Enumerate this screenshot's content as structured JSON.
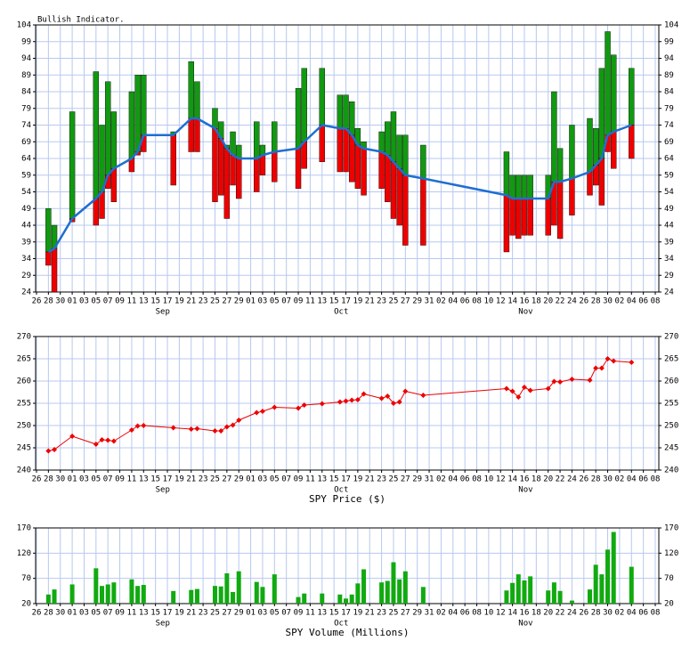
{
  "chart_data": [
    {
      "type": "range_bar",
      "title": "Bullish Indicator.",
      "x": [
        "Aug 28",
        "Aug 29",
        "Sep 1",
        "Sep 5",
        "Sep 6",
        "Sep 7",
        "Sep 8",
        "Sep 11",
        "Sep 12",
        "Sep 13",
        "Sep 18",
        "Sep 21",
        "Sep 22",
        "Sep 25",
        "Sep 26",
        "Sep 27",
        "Sep 28",
        "Sep 29",
        "Oct 2",
        "Oct 3",
        "Oct 5",
        "Oct 9",
        "Oct 10",
        "Oct 13",
        "Oct 16",
        "Oct 17",
        "Oct 18",
        "Oct 19",
        "Oct 20",
        "Oct 23",
        "Oct 24",
        "Oct 25",
        "Oct 26",
        "Oct 27",
        "Oct 30",
        "Nov 13",
        "Nov 14",
        "Nov 15",
        "Nov 16",
        "Nov 17",
        "Nov 20",
        "Nov 21",
        "Nov 22",
        "Nov 24",
        "Nov 27",
        "Nov 28",
        "Nov 29",
        "Nov 30",
        "Dec 1",
        "Dec 4"
      ],
      "high": [
        49,
        44,
        78,
        90,
        74,
        87,
        78,
        84,
        89,
        89,
        72,
        93,
        87,
        79,
        75,
        68,
        72,
        68,
        75,
        68,
        75,
        85,
        91,
        91,
        83,
        83,
        81,
        73,
        69,
        72,
        75,
        78,
        71,
        71,
        68,
        66,
        59,
        59,
        59,
        59,
        59,
        84,
        67,
        74,
        76,
        73,
        91,
        102,
        95,
        91
      ],
      "mid": [
        36,
        37,
        46,
        52,
        54,
        59,
        61,
        64,
        66,
        71,
        71,
        76,
        76,
        73,
        70,
        67,
        65,
        64,
        64,
        65,
        66,
        67,
        69,
        74,
        73,
        73,
        71,
        68,
        67,
        66,
        65,
        63,
        61,
        59,
        58,
        53,
        52,
        52,
        52,
        52,
        52,
        57,
        57,
        58,
        60,
        62,
        64,
        71,
        72,
        74
      ],
      "low": [
        32,
        24,
        45,
        44,
        46,
        55,
        51,
        60,
        65,
        66,
        56,
        66,
        66,
        51,
        53,
        46,
        56,
        52,
        54,
        59,
        57,
        55,
        61,
        63,
        60,
        60,
        57,
        55,
        53,
        55,
        51,
        46,
        44,
        38,
        38,
        36,
        41,
        40,
        41,
        41,
        41,
        44,
        40,
        47,
        53,
        56,
        50,
        66,
        61,
        64
      ],
      "up_color": "#119911",
      "down_color": "#ee0000",
      "line_color": "#1e6ed2",
      "xlim": [
        "Aug 26",
        "Dec 8"
      ],
      "xticks": [
        {
          "value": "Aug 26",
          "label": "26"
        },
        {
          "value": "Aug 28",
          "label": "28"
        },
        {
          "value": "Aug 30",
          "label": "30"
        },
        {
          "value": "Sep 1",
          "label": "01"
        },
        {
          "value": "Sep 3",
          "label": "03"
        },
        {
          "value": "Sep 5",
          "label": "05"
        },
        {
          "value": "Sep 7",
          "label": "07"
        },
        {
          "value": "Sep 9",
          "label": "09"
        },
        {
          "value": "Sep 11",
          "label": "11"
        },
        {
          "value": "Sep 13",
          "label": "13"
        },
        {
          "value": "Sep 15",
          "label": "15"
        },
        {
          "value": "Sep 17",
          "label": "17"
        },
        {
          "value": "Sep 19",
          "label": "19"
        },
        {
          "value": "Sep 21",
          "label": "21"
        },
        {
          "value": "Sep 23",
          "label": "23"
        },
        {
          "value": "Sep 25",
          "label": "25"
        },
        {
          "value": "Sep 27",
          "label": "27"
        },
        {
          "value": "Sep 29",
          "label": "29"
        },
        {
          "value": "Oct 1",
          "label": "01"
        },
        {
          "value": "Oct 3",
          "label": "03"
        },
        {
          "value": "Oct 5",
          "label": "05"
        },
        {
          "value": "Oct 7",
          "label": "07"
        },
        {
          "value": "Oct 9",
          "label": "09"
        },
        {
          "value": "Oct 11",
          "label": "11"
        },
        {
          "value": "Oct 13",
          "label": "13"
        },
        {
          "value": "Oct 15",
          "label": "15"
        },
        {
          "value": "Oct 17",
          "label": "17"
        },
        {
          "value": "Oct 19",
          "label": "19"
        },
        {
          "value": "Oct 21",
          "label": "21"
        },
        {
          "value": "Oct 23",
          "label": "23"
        },
        {
          "value": "Oct 25",
          "label": "25"
        },
        {
          "value": "Oct 27",
          "label": "27"
        },
        {
          "value": "Oct 29",
          "label": "29"
        },
        {
          "value": "Oct 31",
          "label": "31"
        },
        {
          "value": "Nov 2",
          "label": "02"
        },
        {
          "value": "Nov 4",
          "label": "04"
        },
        {
          "value": "Nov 6",
          "label": "06"
        },
        {
          "value": "Nov 8",
          "label": "08"
        },
        {
          "value": "Nov 10",
          "label": "10"
        },
        {
          "value": "Nov 12",
          "label": "12"
        },
        {
          "value": "Nov 14",
          "label": "14"
        },
        {
          "value": "Nov 16",
          "label": "16"
        },
        {
          "value": "Nov 18",
          "label": "18"
        },
        {
          "value": "Nov 20",
          "label": "20"
        },
        {
          "value": "Nov 22",
          "label": "22"
        },
        {
          "value": "Nov 24",
          "label": "24"
        },
        {
          "value": "Nov 26",
          "label": "26"
        },
        {
          "value": "Nov 28",
          "label": "28"
        },
        {
          "value": "Nov 30",
          "label": "30"
        },
        {
          "value": "Dec 2",
          "label": "02"
        },
        {
          "value": "Dec 4",
          "label": "04"
        },
        {
          "value": "Dec 6",
          "label": "06"
        },
        {
          "value": "Dec 8",
          "label": "08"
        }
      ],
      "month_ticks": [
        {
          "value": "Sep 15",
          "label": "Sep"
        },
        {
          "value": "Oct 15",
          "label": "Oct"
        },
        {
          "value": "Nov 15",
          "label": "Nov"
        }
      ],
      "ylim": [
        24,
        104
      ],
      "yticks": [
        24,
        29,
        34,
        39,
        44,
        49,
        54,
        59,
        64,
        69,
        74,
        79,
        84,
        89,
        94,
        99,
        104
      ],
      "grid": true,
      "mirror_y": true
    },
    {
      "type": "line",
      "xlabel": "SPY Price ($)",
      "x": [
        "Aug 28",
        "Aug 29",
        "Sep 1",
        "Sep 5",
        "Sep 6",
        "Sep 7",
        "Sep 8",
        "Sep 11",
        "Sep 12",
        "Sep 13",
        "Sep 18",
        "Sep 21",
        "Sep 22",
        "Sep 25",
        "Sep 26",
        "Sep 27",
        "Sep 28",
        "Sep 29",
        "Oct 2",
        "Oct 3",
        "Oct 5",
        "Oct 9",
        "Oct 10",
        "Oct 13",
        "Oct 16",
        "Oct 17",
        "Oct 18",
        "Oct 19",
        "Oct 20",
        "Oct 23",
        "Oct 24",
        "Oct 25",
        "Oct 26",
        "Oct 27",
        "Oct 30",
        "Nov 13",
        "Nov 14",
        "Nov 15",
        "Nov 16",
        "Nov 17",
        "Nov 20",
        "Nov 21",
        "Nov 22",
        "Nov 24",
        "Nov 27",
        "Nov 28",
        "Nov 29",
        "Nov 30",
        "Dec 1",
        "Dec 4"
      ],
      "values": [
        244.3,
        244.6,
        247.6,
        245.8,
        246.8,
        246.7,
        246.5,
        249,
        249.9,
        250,
        249.5,
        249.2,
        249.3,
        248.8,
        248.8,
        249.7,
        250.1,
        251.2,
        252.9,
        253.2,
        254.1,
        253.9,
        254.6,
        254.9,
        255.3,
        255.5,
        255.7,
        255.8,
        257.1,
        256.1,
        256.6,
        255,
        255.3,
        257.7,
        256.8,
        258.3,
        257.7,
        256.4,
        258.6,
        257.9,
        258.3,
        259.9,
        259.8,
        260.4,
        260.2,
        262.9,
        262.9,
        265,
        264.5,
        264.2
      ],
      "color": "#ee0000",
      "xlim": [
        "Aug 26",
        "Dec 8"
      ],
      "xticks": [
        {
          "value": "Aug 26",
          "label": "26"
        },
        {
          "value": "Aug 28",
          "label": "28"
        },
        {
          "value": "Aug 30",
          "label": "30"
        },
        {
          "value": "Sep 1",
          "label": "01"
        },
        {
          "value": "Sep 3",
          "label": "03"
        },
        {
          "value": "Sep 5",
          "label": "05"
        },
        {
          "value": "Sep 7",
          "label": "07"
        },
        {
          "value": "Sep 9",
          "label": "09"
        },
        {
          "value": "Sep 11",
          "label": "11"
        },
        {
          "value": "Sep 13",
          "label": "13"
        },
        {
          "value": "Sep 15",
          "label": "15"
        },
        {
          "value": "Sep 17",
          "label": "17"
        },
        {
          "value": "Sep 19",
          "label": "19"
        },
        {
          "value": "Sep 21",
          "label": "21"
        },
        {
          "value": "Sep 23",
          "label": "23"
        },
        {
          "value": "Sep 25",
          "label": "25"
        },
        {
          "value": "Sep 27",
          "label": "27"
        },
        {
          "value": "Sep 29",
          "label": "29"
        },
        {
          "value": "Oct 1",
          "label": "01"
        },
        {
          "value": "Oct 3",
          "label": "03"
        },
        {
          "value": "Oct 5",
          "label": "05"
        },
        {
          "value": "Oct 7",
          "label": "07"
        },
        {
          "value": "Oct 9",
          "label": "09"
        },
        {
          "value": "Oct 11",
          "label": "11"
        },
        {
          "value": "Oct 13",
          "label": "13"
        },
        {
          "value": "Oct 15",
          "label": "15"
        },
        {
          "value": "Oct 17",
          "label": "17"
        },
        {
          "value": "Oct 19",
          "label": "19"
        },
        {
          "value": "Oct 21",
          "label": "21"
        },
        {
          "value": "Oct 23",
          "label": "23"
        },
        {
          "value": "Oct 25",
          "label": "25"
        },
        {
          "value": "Oct 27",
          "label": "27"
        },
        {
          "value": "Oct 29",
          "label": "29"
        },
        {
          "value": "Oct 31",
          "label": "31"
        },
        {
          "value": "Nov 2",
          "label": "02"
        },
        {
          "value": "Nov 4",
          "label": "04"
        },
        {
          "value": "Nov 6",
          "label": "06"
        },
        {
          "value": "Nov 8",
          "label": "08"
        },
        {
          "value": "Nov 10",
          "label": "10"
        },
        {
          "value": "Nov 12",
          "label": "12"
        },
        {
          "value": "Nov 14",
          "label": "14"
        },
        {
          "value": "Nov 16",
          "label": "16"
        },
        {
          "value": "Nov 18",
          "label": "18"
        },
        {
          "value": "Nov 20",
          "label": "20"
        },
        {
          "value": "Nov 22",
          "label": "22"
        },
        {
          "value": "Nov 24",
          "label": "24"
        },
        {
          "value": "Nov 26",
          "label": "26"
        },
        {
          "value": "Nov 28",
          "label": "28"
        },
        {
          "value": "Nov 30",
          "label": "30"
        },
        {
          "value": "Dec 2",
          "label": "02"
        },
        {
          "value": "Dec 4",
          "label": "04"
        },
        {
          "value": "Dec 6",
          "label": "06"
        },
        {
          "value": "Dec 8",
          "label": "08"
        }
      ],
      "month_ticks": [
        {
          "value": "Sep 15",
          "label": "Sep"
        },
        {
          "value": "Oct 15",
          "label": "Oct"
        },
        {
          "value": "Nov 15",
          "label": "Nov"
        }
      ],
      "ylim": [
        240,
        270
      ],
      "yticks": [
        240,
        245,
        250,
        255,
        260,
        265,
        270
      ],
      "grid": true,
      "mirror_y": true
    },
    {
      "type": "bar",
      "xlabel": "SPY Volume (Millions)",
      "x": [
        "Aug 28",
        "Aug 29",
        "Sep 1",
        "Sep 5",
        "Sep 6",
        "Sep 7",
        "Sep 8",
        "Sep 11",
        "Sep 12",
        "Sep 13",
        "Sep 18",
        "Sep 21",
        "Sep 22",
        "Sep 25",
        "Sep 26",
        "Sep 27",
        "Sep 28",
        "Sep 29",
        "Oct 2",
        "Oct 3",
        "Oct 5",
        "Oct 9",
        "Oct 10",
        "Oct 13",
        "Oct 16",
        "Oct 17",
        "Oct 18",
        "Oct 19",
        "Oct 20",
        "Oct 23",
        "Oct 24",
        "Oct 25",
        "Oct 26",
        "Oct 27",
        "Oct 30",
        "Nov 13",
        "Nov 14",
        "Nov 15",
        "Nov 16",
        "Nov 17",
        "Nov 20",
        "Nov 21",
        "Nov 22",
        "Nov 24",
        "Nov 27",
        "Nov 28",
        "Nov 29",
        "Nov 30",
        "Dec 1",
        "Dec 4"
      ],
      "values": [
        38,
        48,
        58,
        90,
        55,
        58,
        62,
        68,
        55,
        57,
        45,
        47,
        49,
        55,
        54,
        80,
        43,
        84,
        63,
        53,
        78,
        33,
        40,
        40,
        38,
        30,
        38,
        60,
        88,
        62,
        65,
        102,
        68,
        84,
        53,
        46,
        61,
        78,
        66,
        74,
        46,
        62,
        45,
        26,
        48,
        97,
        78,
        127,
        162,
        93
      ],
      "color": "#11aa11",
      "xlim": [
        "Aug 26",
        "Dec 8"
      ],
      "xticks": [
        {
          "value": "Aug 26",
          "label": "26"
        },
        {
          "value": "Aug 28",
          "label": "28"
        },
        {
          "value": "Aug 30",
          "label": "30"
        },
        {
          "value": "Sep 1",
          "label": "01"
        },
        {
          "value": "Sep 3",
          "label": "03"
        },
        {
          "value": "Sep 5",
          "label": "05"
        },
        {
          "value": "Sep 7",
          "label": "07"
        },
        {
          "value": "Sep 9",
          "label": "09"
        },
        {
          "value": "Sep 11",
          "label": "11"
        },
        {
          "value": "Sep 13",
          "label": "13"
        },
        {
          "value": "Sep 15",
          "label": "15"
        },
        {
          "value": "Sep 17",
          "label": "17"
        },
        {
          "value": "Sep 19",
          "label": "19"
        },
        {
          "value": "Sep 21",
          "label": "21"
        },
        {
          "value": "Sep 23",
          "label": "23"
        },
        {
          "value": "Sep 25",
          "label": "25"
        },
        {
          "value": "Sep 27",
          "label": "27"
        },
        {
          "value": "Sep 29",
          "label": "29"
        },
        {
          "value": "Oct 1",
          "label": "01"
        },
        {
          "value": "Oct 3",
          "label": "03"
        },
        {
          "value": "Oct 5",
          "label": "05"
        },
        {
          "value": "Oct 7",
          "label": "07"
        },
        {
          "value": "Oct 9",
          "label": "09"
        },
        {
          "value": "Oct 11",
          "label": "11"
        },
        {
          "value": "Oct 13",
          "label": "13"
        },
        {
          "value": "Oct 15",
          "label": "15"
        },
        {
          "value": "Oct 17",
          "label": "17"
        },
        {
          "value": "Oct 19",
          "label": "19"
        },
        {
          "value": "Oct 21",
          "label": "21"
        },
        {
          "value": "Oct 23",
          "label": "23"
        },
        {
          "value": "Oct 25",
          "label": "25"
        },
        {
          "value": "Oct 27",
          "label": "27"
        },
        {
          "value": "Oct 29",
          "label": "29"
        },
        {
          "value": "Oct 31",
          "label": "31"
        },
        {
          "value": "Nov 2",
          "label": "02"
        },
        {
          "value": "Nov 4",
          "label": "04"
        },
        {
          "value": "Nov 6",
          "label": "06"
        },
        {
          "value": "Nov 8",
          "label": "08"
        },
        {
          "value": "Nov 10",
          "label": "10"
        },
        {
          "value": "Nov 12",
          "label": "12"
        },
        {
          "value": "Nov 14",
          "label": "14"
        },
        {
          "value": "Nov 16",
          "label": "16"
        },
        {
          "value": "Nov 18",
          "label": "18"
        },
        {
          "value": "Nov 20",
          "label": "20"
        },
        {
          "value": "Nov 22",
          "label": "22"
        },
        {
          "value": "Nov 24",
          "label": "24"
        },
        {
          "value": "Nov 26",
          "label": "26"
        },
        {
          "value": "Nov 28",
          "label": "28"
        },
        {
          "value": "Nov 30",
          "label": "30"
        },
        {
          "value": "Dec 2",
          "label": "02"
        },
        {
          "value": "Dec 4",
          "label": "04"
        },
        {
          "value": "Dec 6",
          "label": "06"
        },
        {
          "value": "Dec 8",
          "label": "08"
        }
      ],
      "month_ticks": [
        {
          "value": "Sep 15",
          "label": "Sep"
        },
        {
          "value": "Oct 15",
          "label": "Oct"
        },
        {
          "value": "Nov 15",
          "label": "Nov"
        }
      ],
      "ylim": [
        20,
        170
      ],
      "yticks": [
        20,
        70,
        120,
        170
      ],
      "grid": true,
      "mirror_y": true
    }
  ]
}
